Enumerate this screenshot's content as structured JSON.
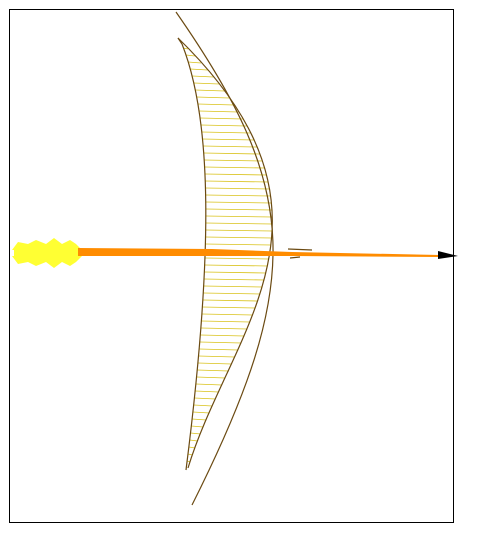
{
  "colors": {
    "frame": "#000000",
    "bow": "#6b4a12",
    "hatch": "#d9c21a",
    "shaft": "#ff8c00",
    "fletching": "#ffff33",
    "arrowhead": "#000000"
  },
  "icons": [
    "bow-icon",
    "arrow-icon",
    "arrowhead-icon",
    "fletching-icon"
  ]
}
